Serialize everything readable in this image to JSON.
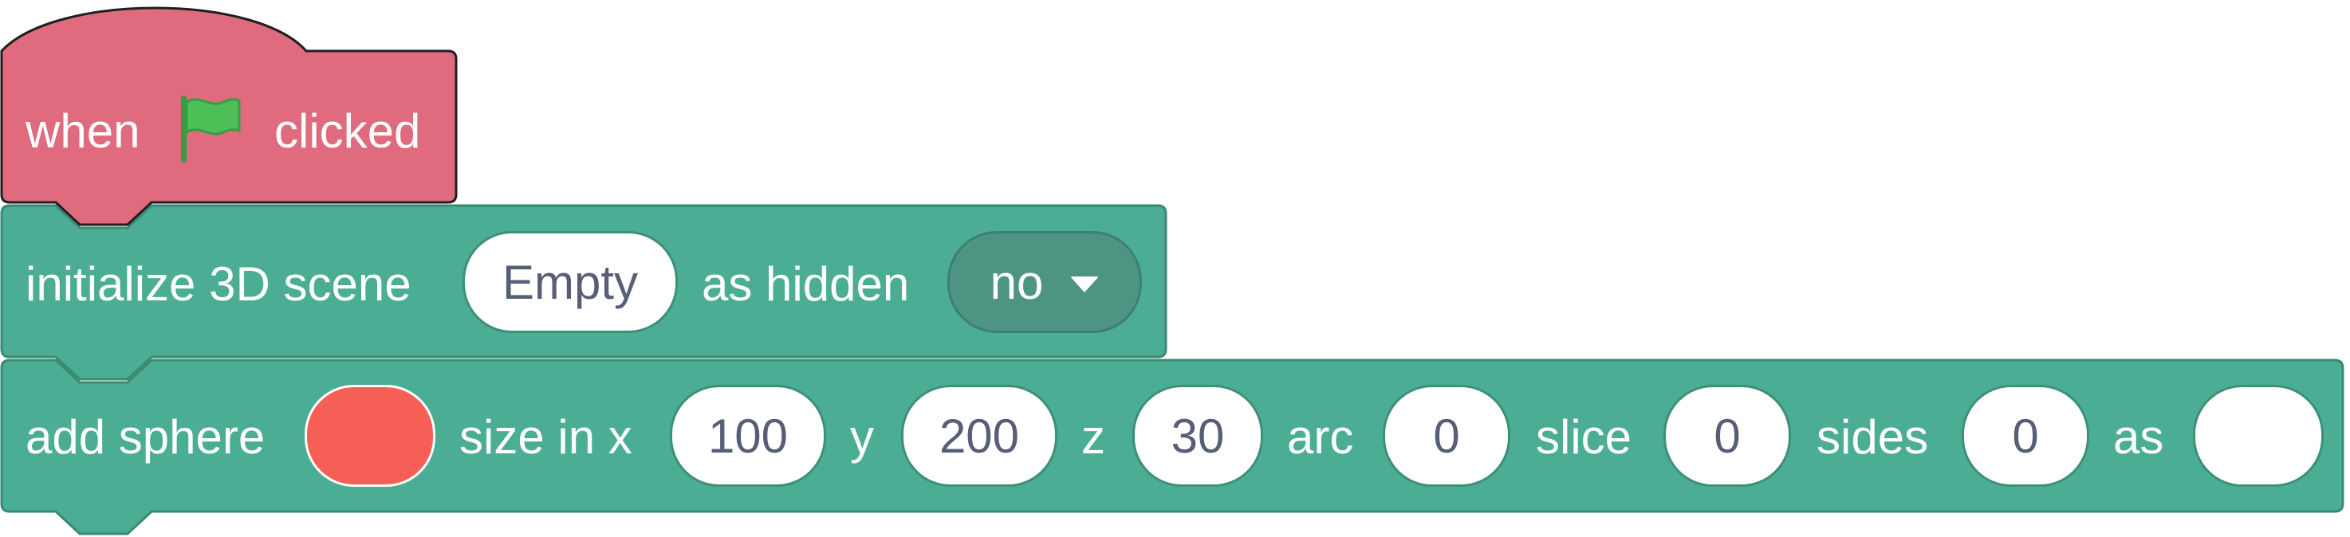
{
  "colors": {
    "event_fill": "#e06b7e",
    "event_stroke": "#1f1f1f",
    "scene_fill": "#4bad93",
    "scene_stroke": "#3a8a73",
    "flag_green": "#4cbf56",
    "sphere_color": "#f55f55"
  },
  "hat_block": {
    "when_label": "when",
    "flag_icon": "green-flag-icon",
    "clicked_label": "clicked"
  },
  "init_block": {
    "label": "initialize 3D scene",
    "scene_value": "Empty",
    "hidden_label": "as hidden",
    "hidden_value": "no",
    "dropdown_icon": "caret-down-icon"
  },
  "sphere_block": {
    "label": "add sphere",
    "size_label": "size in x",
    "x_value": "100",
    "y_label": "y",
    "y_value": "200",
    "z_label": "z",
    "z_value": "30",
    "arc_label": "arc",
    "arc_value": "0",
    "slice_label": "slice",
    "slice_value": "0",
    "sides_label": "sides",
    "sides_value": "0",
    "as_label": "as",
    "as_value": ""
  }
}
